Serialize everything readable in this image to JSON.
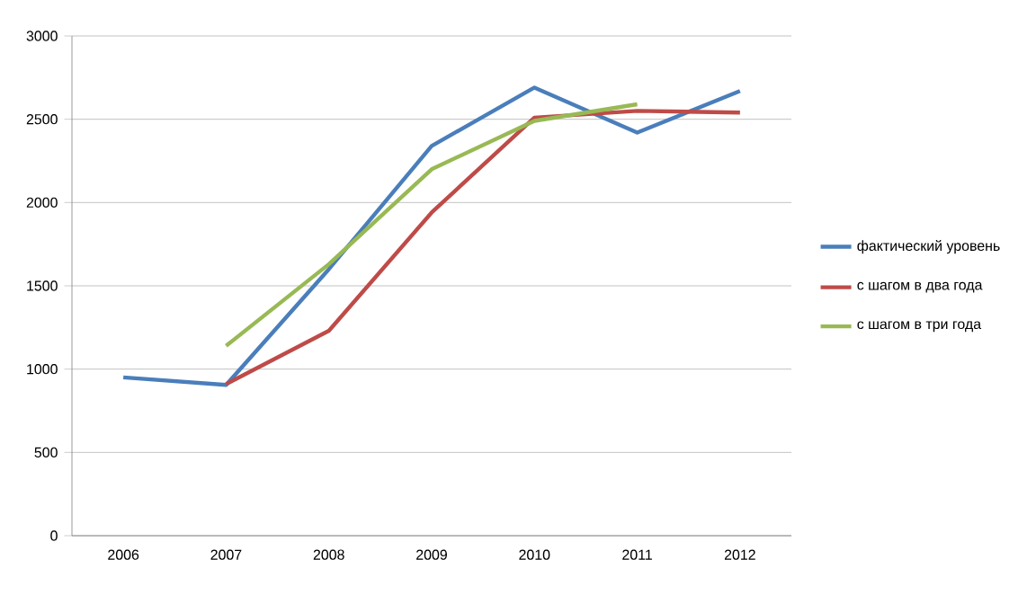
{
  "chart_data": {
    "type": "line",
    "categories": [
      "2006",
      "2007",
      "2008",
      "2009",
      "2010",
      "2011",
      "2012"
    ],
    "ylim": [
      0,
      3000
    ],
    "yticks": [
      0,
      500,
      1000,
      1500,
      2000,
      2500,
      3000
    ],
    "grid": "y",
    "legend": "right",
    "marker": "none",
    "line_style": "solid",
    "series": [
      {
        "name": "фактический уровень",
        "color": "#4a7ebb",
        "values": [
          950,
          905,
          1600,
          2340,
          2690,
          2420,
          2670
        ]
      },
      {
        "name": "с шагом в два года",
        "color": "#be4b48",
        "values": [
          null,
          910,
          1230,
          1940,
          2510,
          2550,
          2540
        ]
      },
      {
        "name": "с шагом в три года",
        "color": "#98b954",
        "values": [
          null,
          1140,
          1630,
          2200,
          2490,
          2590,
          null
        ]
      }
    ]
  }
}
